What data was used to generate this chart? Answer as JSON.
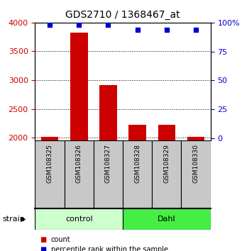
{
  "title": "GDS2710 / 1368467_at",
  "samples": [
    "GSM108325",
    "GSM108326",
    "GSM108327",
    "GSM108328",
    "GSM108329",
    "GSM108330"
  ],
  "counts": [
    2010,
    3830,
    2910,
    2220,
    2220,
    2010
  ],
  "percentiles": [
    98,
    98,
    98,
    94,
    94,
    94
  ],
  "bar_color": "#cc0000",
  "dot_color": "#0000cc",
  "ylim_left": [
    1950,
    4000
  ],
  "ylim_right": [
    -2,
    100
  ],
  "yticks_left": [
    2000,
    2500,
    3000,
    3500,
    4000
  ],
  "yticks_right": [
    0,
    25,
    50,
    75,
    100
  ],
  "grid_color": "#888888",
  "bar_width": 0.6,
  "sample_box_color": "#c8c8c8",
  "control_color": "#ccffcc",
  "dahl_color": "#44ee44",
  "legend_count_label": "count",
  "legend_pct_label": "percentile rank within the sample",
  "left_tick_color": "#cc0000",
  "right_tick_color": "#0000cc",
  "figsize": [
    3.41,
    3.54
  ],
  "dpi": 100
}
